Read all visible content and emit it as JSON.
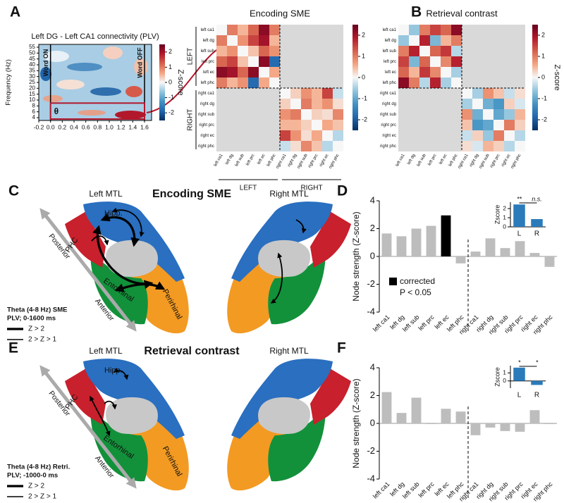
{
  "panel_labels": [
    "A",
    "B",
    "C",
    "D",
    "E",
    "F"
  ],
  "chart_data": [
    {
      "type": "spectrogram",
      "title": "Left DG - Left CA1 connectivity (PLV)",
      "ylabel": "Frequency (Hz)",
      "xlim": [
        -0.2,
        1.72
      ],
      "xticks": [
        -0.2,
        {
          "value": 0,
          "label": "0.0"
        },
        0.2,
        0.4,
        0.6,
        0.8,
        {
          "value": 1,
          "label": "1.0"
        },
        1.2,
        1.4,
        1.6
      ],
      "ycategories": [
        4,
        6,
        8,
        10,
        15,
        20,
        25,
        30,
        35,
        40,
        45,
        50,
        55
      ],
      "events": [
        {
          "x": 0,
          "label": "Word ON"
        },
        {
          "x": 1.6,
          "label": "Word OFF"
        }
      ],
      "annotation": "θ",
      "clim": [
        -2.5,
        2.5
      ],
      "cticks": [
        -2,
        -1,
        0,
        1,
        2
      ],
      "colorbar_label": "Z-score"
    },
    {
      "type": "heatmap",
      "title": "Encoding SME",
      "labels": [
        "left ca1",
        "left dg",
        "left sub",
        "left prc",
        "left ec",
        "left phc",
        "right ca1",
        "right dg",
        "right sub",
        "right prc",
        "right ec",
        "right phc"
      ],
      "groups": [
        "LEFT",
        "RIGHT"
      ],
      "values": [
        [
          0,
          1.0,
          0.5,
          1.2,
          2.2,
          1.0,
          null,
          null,
          null,
          null,
          null,
          null
        ],
        [
          1.0,
          0,
          0.8,
          1.5,
          2.0,
          0.5,
          null,
          null,
          null,
          null,
          null,
          null
        ],
        [
          0.5,
          0.8,
          0,
          0.4,
          1.2,
          0.8,
          null,
          null,
          null,
          null,
          null,
          null
        ],
        [
          1.2,
          1.5,
          0.4,
          0,
          2.2,
          -1.8,
          null,
          null,
          null,
          null,
          null,
          null
        ],
        [
          2.2,
          2.0,
          1.2,
          2.2,
          0,
          0.6,
          null,
          null,
          null,
          null,
          null,
          null
        ],
        [
          1.0,
          0.5,
          0.8,
          -1.8,
          0.6,
          0,
          null,
          null,
          null,
          null,
          null,
          null
        ],
        [
          null,
          null,
          null,
          null,
          null,
          null,
          0,
          0.3,
          0.8,
          0.5,
          1.5,
          -0.3
        ],
        [
          null,
          null,
          null,
          null,
          null,
          null,
          0.3,
          0,
          1.0,
          0.5,
          0.8,
          0.2
        ],
        [
          null,
          null,
          null,
          null,
          null,
          null,
          0.8,
          1.0,
          0,
          0.3,
          0.2,
          0.9
        ],
        [
          null,
          null,
          null,
          null,
          null,
          null,
          0.5,
          0.5,
          0.3,
          0,
          0.6,
          0.4
        ],
        [
          null,
          null,
          null,
          null,
          null,
          null,
          1.5,
          0.8,
          0.2,
          0.6,
          0,
          -0.4
        ],
        [
          null,
          null,
          null,
          null,
          null,
          null,
          -0.3,
          0.2,
          0.9,
          0.4,
          -0.4,
          0
        ]
      ],
      "clim": [
        -2.5,
        2.5
      ],
      "cticks": [
        -2,
        -1,
        0,
        1,
        2
      ]
    },
    {
      "type": "heatmap",
      "title": "Retrieval contrast",
      "labels": [
        "left ca1",
        "left dg",
        "left sub",
        "left prc",
        "left ec",
        "left phc",
        "right ca1",
        "right dg",
        "right sub",
        "right prc",
        "right ec",
        "right phc"
      ],
      "values": [
        [
          0,
          -0.6,
          1.0,
          1.5,
          1.2,
          2.2,
          null,
          null,
          null,
          null,
          null,
          null
        ],
        [
          -0.6,
          0,
          1.8,
          -0.8,
          0.5,
          1.0,
          null,
          null,
          null,
          null,
          null,
          null
        ],
        [
          1.0,
          1.8,
          0,
          1.2,
          1.6,
          -0.4,
          null,
          null,
          null,
          null,
          null,
          null
        ],
        [
          1.5,
          -0.8,
          1.2,
          0,
          0.9,
          1.8,
          null,
          null,
          null,
          null,
          null,
          null
        ],
        [
          1.2,
          0.5,
          1.6,
          0.9,
          0,
          -0.5,
          null,
          null,
          null,
          null,
          null,
          null
        ],
        [
          2.2,
          1.0,
          -0.4,
          1.8,
          -0.5,
          0,
          null,
          null,
          null,
          null,
          null,
          null
        ],
        [
          null,
          null,
          null,
          null,
          null,
          null,
          0,
          -0.5,
          0.8,
          0.4,
          -0.3,
          0.2
        ],
        [
          null,
          null,
          null,
          null,
          null,
          null,
          -0.5,
          0,
          -0.9,
          -1.2,
          0.3,
          -0.2
        ],
        [
          null,
          null,
          null,
          null,
          null,
          null,
          0.8,
          -0.9,
          0,
          -1.0,
          -0.6,
          0.5
        ],
        [
          null,
          null,
          null,
          null,
          null,
          null,
          0.4,
          -1.2,
          -1.0,
          0,
          1.0,
          0.3
        ],
        [
          null,
          null,
          null,
          null,
          null,
          null,
          -0.3,
          0.3,
          -0.6,
          1.0,
          0,
          -0.4
        ],
        [
          null,
          null,
          null,
          null,
          null,
          null,
          0.2,
          -0.2,
          0.5,
          0.3,
          -0.4,
          0
        ]
      ],
      "clim": [
        -2.5,
        2.5
      ],
      "cticks": [
        -2,
        -1,
        0,
        1,
        2
      ],
      "colorbar_label": "Z-score"
    },
    {
      "type": "bar",
      "ylabel": "Node strength (Z-score)",
      "categories": [
        "left ca1",
        "left dg",
        "left sub",
        "left prc",
        "left ec",
        "left phc",
        "right ca1",
        "right dg",
        "right sub",
        "right prc",
        "right ec",
        "right phc"
      ],
      "values": [
        1.65,
        1.45,
        2.0,
        2.2,
        2.95,
        -0.5,
        0.35,
        1.3,
        0.6,
        1.1,
        0.25,
        -0.75
      ],
      "colors": [
        "#bdbdbd",
        "#bdbdbd",
        "#bdbdbd",
        "#bdbdbd",
        "#000000",
        "#bdbdbd",
        "#bdbdbd",
        "#bdbdbd",
        "#bdbdbd",
        "#bdbdbd",
        "#bdbdbd",
        "#bdbdbd"
      ],
      "ylim": [
        -4,
        4
      ],
      "yticks": [
        -4,
        -2,
        0,
        2,
        4
      ],
      "legend": {
        "label": "corrected",
        "note": "P < 0.05",
        "color": "#000000"
      }
    },
    {
      "type": "bar",
      "ylabel": "Zscore",
      "categories": [
        "L",
        "R"
      ],
      "values": [
        2.45,
        0.85
      ],
      "color": "#2b7bba",
      "ylim": [
        0,
        2.7
      ],
      "yticks": [
        0,
        1,
        2
      ],
      "annotations": [
        "**",
        "n.s."
      ]
    },
    {
      "type": "bar",
      "ylabel": "Node strength (Z-score)",
      "categories": [
        "left ca1",
        "left dg",
        "left sub",
        "left prc",
        "left ec",
        "left phc",
        "right ca1",
        "right dg",
        "right sub",
        "right prc",
        "right ec",
        "right phc"
      ],
      "values": [
        2.25,
        0.75,
        1.85,
        -0.05,
        1.05,
        0.85,
        -0.85,
        -0.3,
        -0.55,
        -0.6,
        0.95,
        -0.05
      ],
      "color": "#bdbdbd",
      "ylim": [
        -4,
        4
      ],
      "yticks": [
        -4,
        -2,
        0,
        2,
        4
      ]
    },
    {
      "type": "bar",
      "ylabel": "Zscore",
      "categories": [
        "L",
        "R"
      ],
      "values": [
        1.65,
        -0.5
      ],
      "color": "#2b7bba",
      "ylim": [
        -0.9,
        1.9
      ],
      "yticks": [
        0,
        1
      ],
      "annotations": [
        "*",
        "*"
      ]
    }
  ],
  "diagrams": [
    {
      "title": "Encoding SME",
      "left_title": "Left MTL",
      "right_title": "Right MTL",
      "hipp": "Hipp.",
      "phc": "PHC",
      "entorhinal": "Entorhinal",
      "perirhinal": "Perirhinal",
      "posterior": "Posterior",
      "anterior": "Anterior",
      "legend_title": "Theta (4-8 Hz) SME",
      "legend_window": "PLV; 0-1600 ms",
      "strong": "Z > 2",
      "weak": "2 > Z > 1"
    },
    {
      "title": "Retrieval contrast",
      "left_title": "Left MTL",
      "right_title": "Right MTL",
      "hipp": "Hipp.",
      "phc": "PHC",
      "entorhinal": "Entorhinal",
      "perirhinal": "Perirhinal",
      "posterior": "Posterior",
      "anterior": "Anterior",
      "legend_title": "Theta (4-8 Hz) Retri.",
      "legend_window": "PLV; -1000-0 ms",
      "strong": "Z > 2",
      "weak": "2 > Z > 1"
    }
  ]
}
